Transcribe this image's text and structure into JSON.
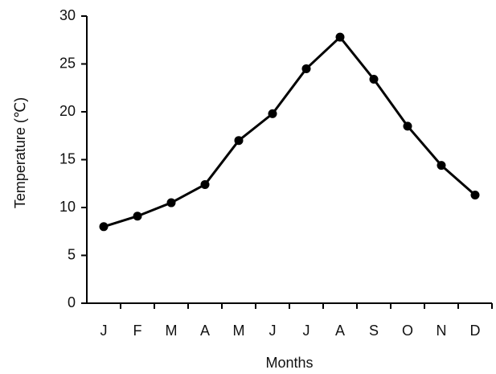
{
  "chart_data": {
    "type": "line",
    "x_label": "Months",
    "y_label": "Temperature (℃)",
    "categories": [
      "J",
      "F",
      "M",
      "A",
      "M",
      "J",
      "J",
      "A",
      "S",
      "O",
      "N",
      "D"
    ],
    "values": [
      8.0,
      9.1,
      10.5,
      12.4,
      17.0,
      19.8,
      24.5,
      27.8,
      23.4,
      18.5,
      14.4,
      11.3
    ],
    "color": "#000000",
    "ylim": [
      0,
      30
    ],
    "yticks": [
      0,
      5,
      10,
      15,
      20,
      25,
      30
    ],
    "grid": false
  }
}
